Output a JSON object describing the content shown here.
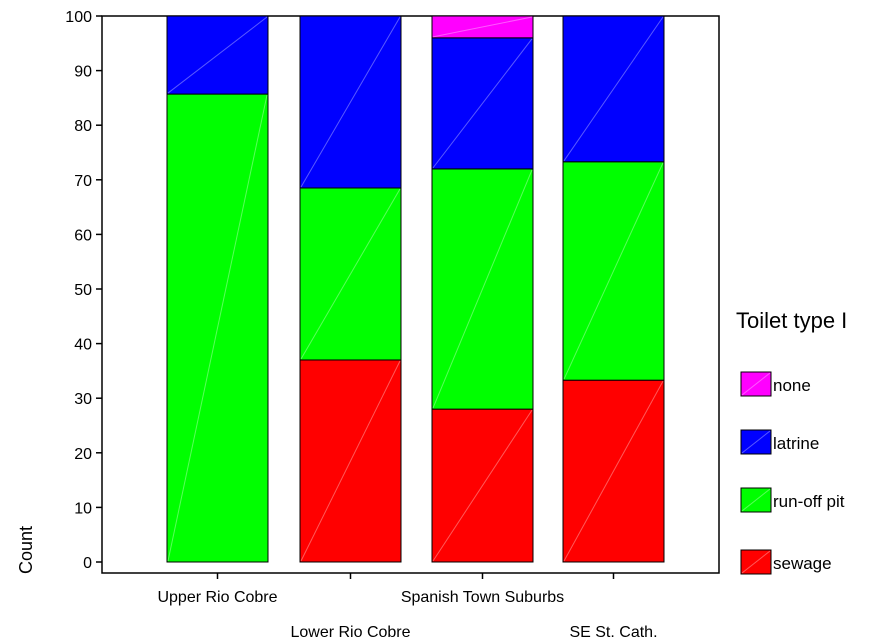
{
  "chart_data": {
    "type": "bar",
    "stacked": true,
    "title": "",
    "xlabel": "",
    "ylabel": "Count",
    "ylim": [
      0,
      100
    ],
    "yticks": [
      0,
      10,
      20,
      30,
      40,
      50,
      60,
      70,
      80,
      90,
      100
    ],
    "categories": [
      "Upper Rio Cobre",
      "Lower Rio Cobre",
      "Spanish Town Suburbs",
      "SE St. Cath."
    ],
    "series": [
      {
        "name": "sewage",
        "color": "#ff0000",
        "values": [
          0,
          37,
          28,
          33.3
        ]
      },
      {
        "name": "run-off pit",
        "color": "#00ff00",
        "values": [
          85.7,
          31.5,
          44,
          40
        ]
      },
      {
        "name": "latrine",
        "color": "#0000ff",
        "values": [
          14.3,
          31.5,
          24,
          26.7
        ]
      },
      {
        "name": "none",
        "color": "#ff00ff",
        "values": [
          0,
          0,
          4,
          0
        ]
      }
    ],
    "legend": {
      "title": "Toilet type I",
      "order": [
        "none",
        "latrine",
        "run-off pit",
        "sewage"
      ],
      "position": "right"
    },
    "grid": false
  }
}
